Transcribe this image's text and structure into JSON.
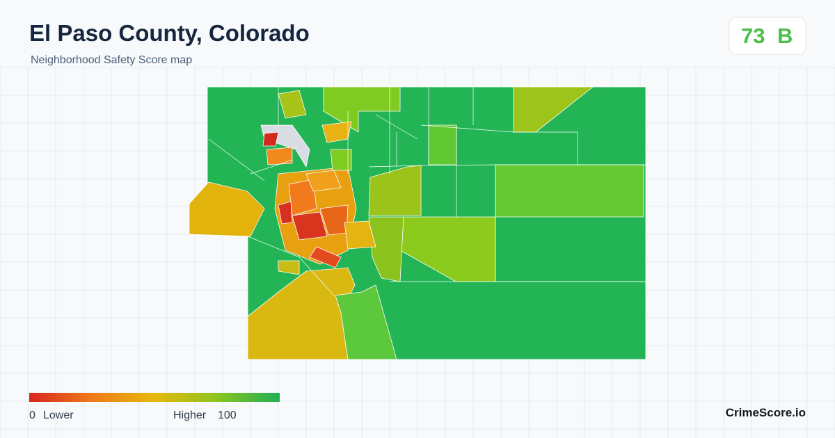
{
  "header": {
    "title": "El Paso County, Colorado",
    "subtitle": "Neighborhood Safety Score map"
  },
  "score": {
    "value": 73,
    "grade": "B"
  },
  "legend": {
    "min": 0,
    "min_label": "Lower",
    "max_label": "Higher",
    "max": 100
  },
  "brand": "CrimeScore.io"
}
